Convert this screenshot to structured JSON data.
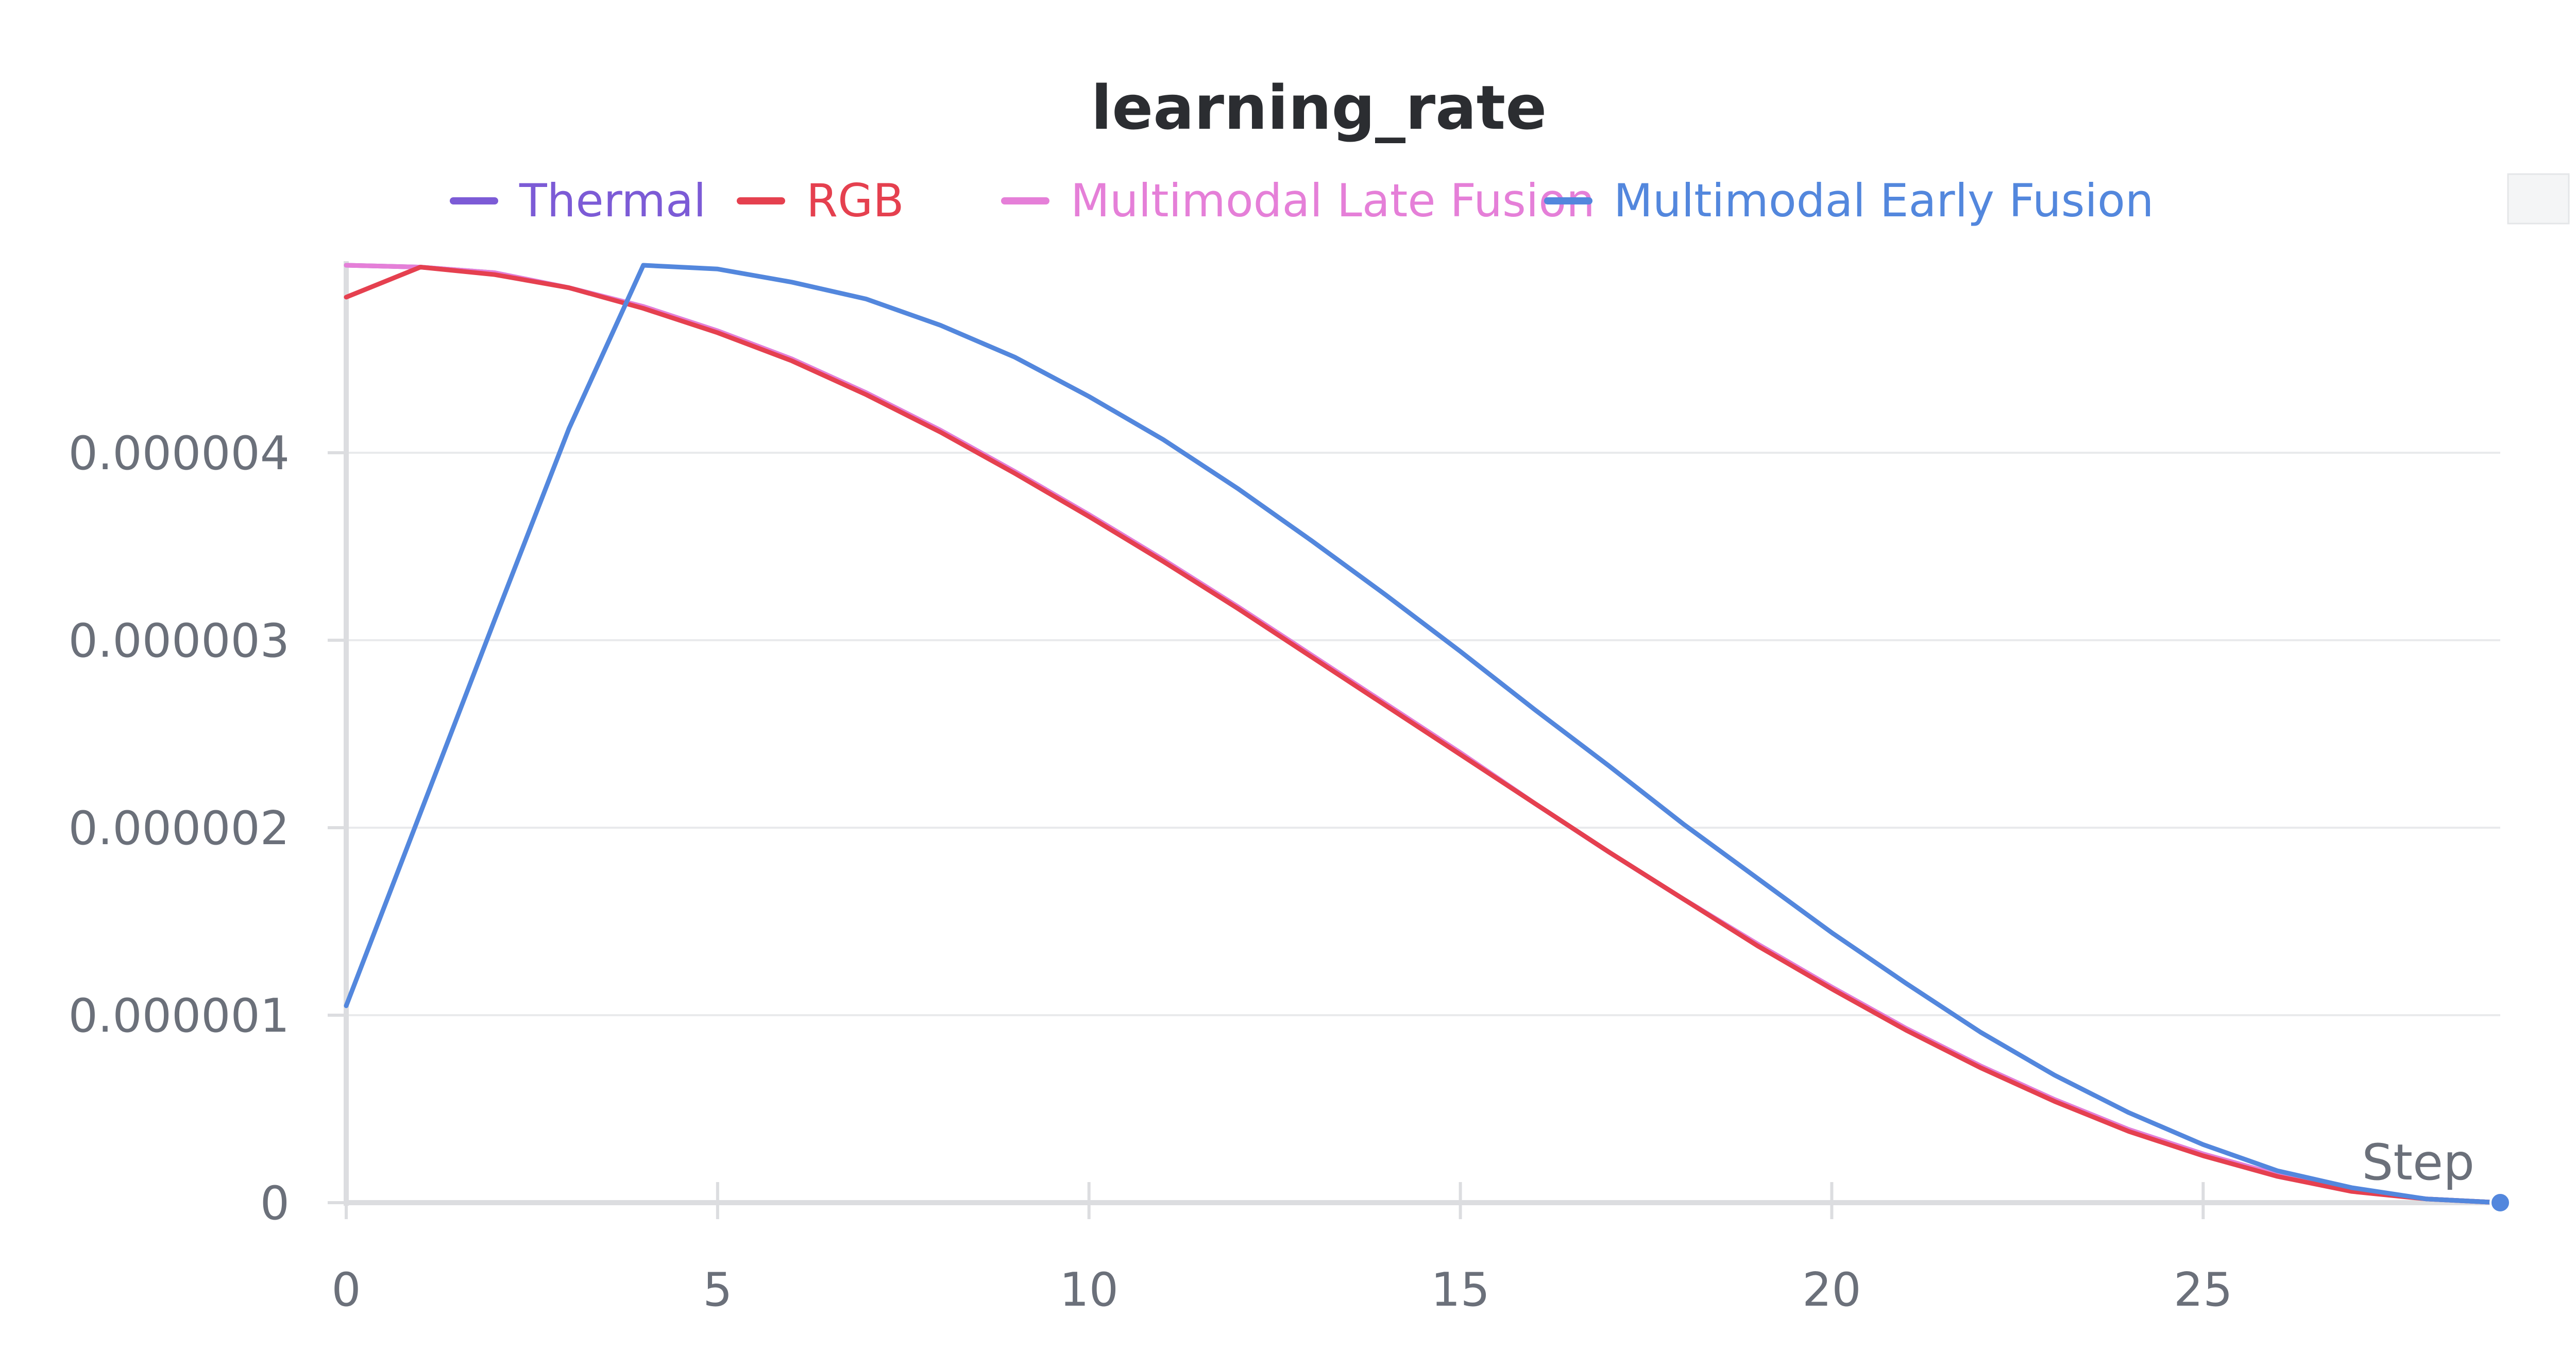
{
  "chart_data": {
    "type": "line",
    "title": "learning_rate",
    "xlabel": "Step",
    "ylabel": "",
    "xlim": [
      0,
      29
    ],
    "ylim": [
      0,
      5e-06
    ],
    "x_ticks": [
      "0",
      "5",
      "10",
      "15",
      "20",
      "25"
    ],
    "x_tick_values": [
      0,
      5,
      10,
      15,
      20,
      25
    ],
    "y_ticks": [
      "0",
      "0.000001",
      "0.000002",
      "0.000003",
      "0.000004"
    ],
    "y_tick_values": [
      0,
      1e-06,
      2e-06,
      3e-06,
      4e-06
    ],
    "grid": true,
    "legend_position": "top",
    "series": [
      {
        "name": "Thermal",
        "color": "#7c5bd6",
        "x": [
          0,
          1,
          2,
          3,
          4,
          5,
          6,
          7,
          8,
          9,
          10,
          11,
          12,
          13,
          14,
          15,
          16,
          17,
          18,
          19,
          20,
          21,
          22,
          23,
          24,
          25,
          26,
          27,
          28,
          29
        ],
        "y": [
          5e-06,
          4.99e-06,
          4.96e-06,
          4.88e-06,
          4.78e-06,
          4.65e-06,
          4.5e-06,
          4.32e-06,
          4.12e-06,
          3.9e-06,
          3.67e-06,
          3.43e-06,
          3.18e-06,
          2.92e-06,
          2.66e-06,
          2.4e-06,
          2.13e-06,
          1.87e-06,
          1.62e-06,
          1.38e-06,
          1.15e-06,
          9.3e-07,
          7.3e-07,
          5.5e-07,
          3.9e-07,
          2.6e-07,
          1.5e-07,
          7e-08,
          2e-08,
          0.0
        ]
      },
      {
        "name": "RGB",
        "color": "#e5404f",
        "x": [
          0,
          1,
          2,
          3,
          4,
          5,
          6,
          7,
          8,
          9,
          10,
          11,
          12,
          13,
          14,
          15,
          16,
          17,
          18,
          19,
          20,
          21,
          22,
          23,
          24,
          25,
          26,
          27,
          28,
          29
        ],
        "y": [
          4.83e-06,
          4.99e-06,
          4.95e-06,
          4.88e-06,
          4.77e-06,
          4.64e-06,
          4.49e-06,
          4.31e-06,
          4.11e-06,
          3.89e-06,
          3.66e-06,
          3.42e-06,
          3.17e-06,
          2.91e-06,
          2.65e-06,
          2.39e-06,
          2.13e-06,
          1.87e-06,
          1.62e-06,
          1.37e-06,
          1.14e-06,
          9.2e-07,
          7.2e-07,
          5.4e-07,
          3.8e-07,
          2.5e-07,
          1.4e-07,
          6e-08,
          2e-08,
          0.0
        ]
      },
      {
        "name": "Multimodal Late Fusion",
        "color": "#e57fd8",
        "x": [
          0,
          1,
          2,
          3,
          4,
          5,
          6,
          7,
          8,
          9,
          10,
          11,
          12,
          13,
          14,
          15,
          16,
          17,
          18,
          19,
          20,
          21,
          22,
          23,
          24,
          25,
          26,
          27,
          28,
          29
        ],
        "y": [
          5e-06,
          4.99e-06,
          4.96e-06,
          4.88e-06,
          4.78e-06,
          4.65e-06,
          4.5e-06,
          4.32e-06,
          4.12e-06,
          3.9e-06,
          3.67e-06,
          3.43e-06,
          3.18e-06,
          2.92e-06,
          2.66e-06,
          2.4e-06,
          2.13e-06,
          1.87e-06,
          1.62e-06,
          1.38e-06,
          1.15e-06,
          9.3e-07,
          7.3e-07,
          5.5e-07,
          3.9e-07,
          2.6e-07,
          1.5e-07,
          7e-08,
          2e-08,
          0.0
        ]
      },
      {
        "name": "Multimodal Early Fusion",
        "color": "#5387dd",
        "x": [
          0,
          1,
          2,
          3,
          4,
          5,
          6,
          7,
          8,
          9,
          10,
          11,
          12,
          13,
          14,
          15,
          16,
          17,
          18,
          19,
          20,
          21,
          22,
          23,
          24,
          25,
          26,
          27,
          28,
          29
        ],
        "y": [
          1.05e-06,
          2.08e-06,
          3.11e-06,
          4.13e-06,
          5e-06,
          4.98e-06,
          4.91e-06,
          4.82e-06,
          4.68e-06,
          4.51e-06,
          4.3e-06,
          4.07e-06,
          3.81e-06,
          3.53e-06,
          3.24e-06,
          2.94e-06,
          2.63e-06,
          2.33e-06,
          2.02e-06,
          1.73e-06,
          1.44e-06,
          1.17e-06,
          9.1e-07,
          6.8e-07,
          4.8e-07,
          3.1e-07,
          1.7e-07,
          8e-08,
          2e-08,
          0.0
        ]
      }
    ]
  }
}
